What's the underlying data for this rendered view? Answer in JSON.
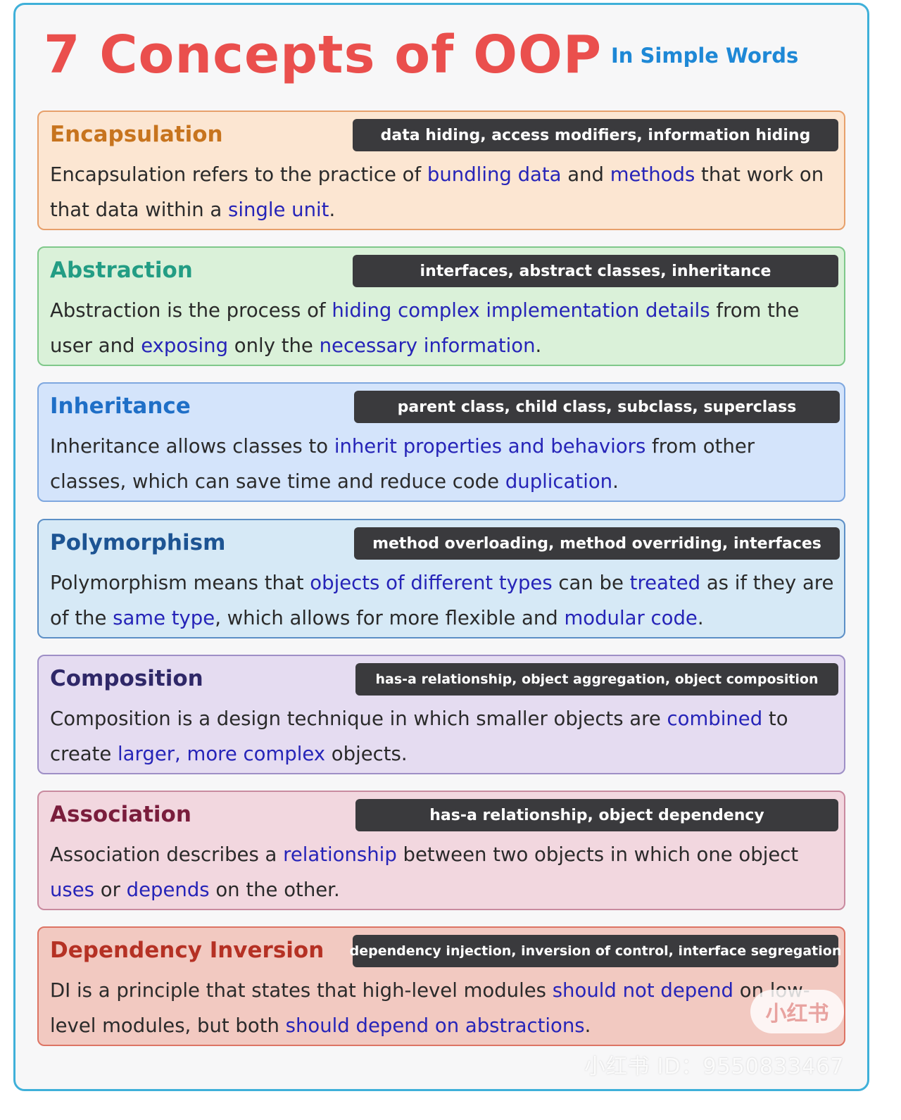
{
  "header": {
    "title": "7 Concepts of OOP",
    "subtitle": "In Simple Words"
  },
  "colors": {
    "title": "#ea4f4d",
    "subtitle": "#1e88d6",
    "tag_bg": "#3a3a3d",
    "highlight": "#2624b8",
    "frame_border": "#3fb0d9"
  },
  "cards": [
    {
      "title": "Encapsulation",
      "tags": "data hiding, access modifiers, information hiding",
      "desc": [
        {
          "t": "Encapsulation refers to the practice of "
        },
        {
          "t": "bundling data",
          "hl": true
        },
        {
          "t": " and "
        },
        {
          "t": "methods",
          "hl": true
        },
        {
          "t": " that work on that data within a "
        },
        {
          "t": "single unit",
          "hl": true
        },
        {
          "t": "."
        }
      ]
    },
    {
      "title": "Abstraction",
      "tags": "interfaces, abstract classes, inheritance",
      "desc": [
        {
          "t": "Abstraction is the process of "
        },
        {
          "t": "hiding complex implementation details",
          "hl": true
        },
        {
          "t": " from the user and "
        },
        {
          "t": "exposing",
          "hl": true
        },
        {
          "t": " only the "
        },
        {
          "t": "necessary information",
          "hl": true
        },
        {
          "t": "."
        }
      ]
    },
    {
      "title": "Inheritance",
      "tags": "parent class, child class, subclass, superclass",
      "desc": [
        {
          "t": "Inheritance allows classes to "
        },
        {
          "t": "inherit properties and behaviors",
          "hl": true
        },
        {
          "t": " from other classes, which can save time and reduce code "
        },
        {
          "t": "duplication",
          "hl": true
        },
        {
          "t": "."
        }
      ]
    },
    {
      "title": "Polymorphism",
      "tags": "method overloading, method overriding, interfaces",
      "desc": [
        {
          "t": "Polymorphism means that "
        },
        {
          "t": "objects of different types",
          "hl": true
        },
        {
          "t": " can be "
        },
        {
          "t": "treated",
          "hl": true
        },
        {
          "t": " as if they are of the "
        },
        {
          "t": "same type",
          "hl": true
        },
        {
          "t": ", which allows for more flexible and "
        },
        {
          "t": "modular code",
          "hl": true
        },
        {
          "t": "."
        }
      ]
    },
    {
      "title": "Composition",
      "tags": "has-a relationship, object aggregation, object composition",
      "desc": [
        {
          "t": "Composition is a design technique in which smaller objects are "
        },
        {
          "t": "combined",
          "hl": true
        },
        {
          "t": " to create "
        },
        {
          "t": "larger, more complex",
          "hl": true
        },
        {
          "t": " objects."
        }
      ]
    },
    {
      "title": "Association",
      "tags": "has-a relationship, object dependency",
      "desc": [
        {
          "t": "Association describes a "
        },
        {
          "t": "relationship",
          "hl": true
        },
        {
          "t": " between two objects in which one object "
        },
        {
          "t": "uses",
          "hl": true
        },
        {
          "t": " or "
        },
        {
          "t": "depends",
          "hl": true
        },
        {
          "t": " on the other."
        }
      ]
    },
    {
      "title": "Dependency Inversion",
      "tags": "dependency injection, inversion of control, interface segregation",
      "desc": [
        {
          "t": "DI is a principle that states that high-level modules "
        },
        {
          "t": "should not depend",
          "hl": true
        },
        {
          "t": " on low-level modules, but both "
        },
        {
          "t": "should depend on abstractions",
          "hl": true
        },
        {
          "t": "."
        }
      ]
    }
  ],
  "watermark": {
    "badge": "小红书",
    "id_text": "小红书 ID：9550833467"
  }
}
